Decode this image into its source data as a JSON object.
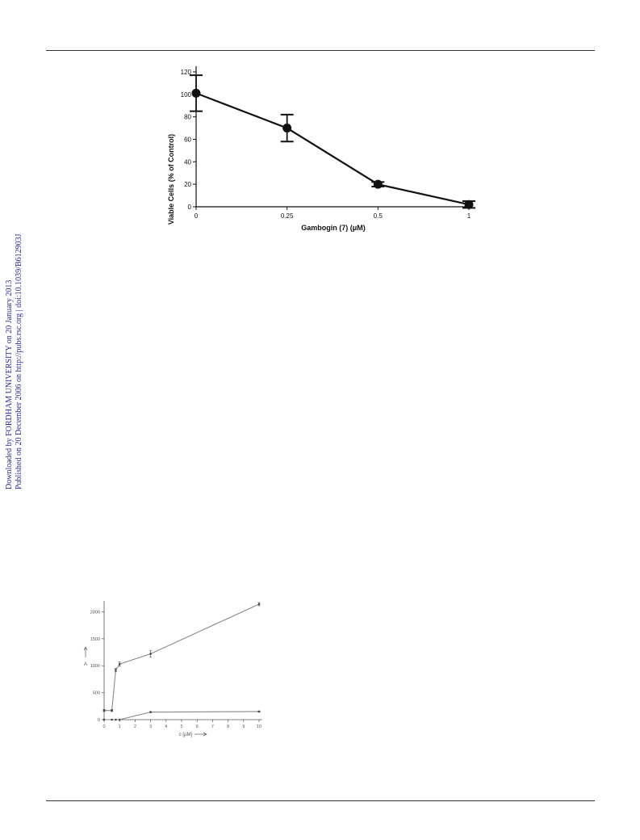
{
  "side_note": {
    "downloaded": "Downloaded by FORDHAM UNIVERSITY on 20 January 2013",
    "published": "Published on 20 December 2006 on http://pubs.rsc.org | doi:10.1039/B612903J"
  },
  "figures": {
    "fig1": {
      "chart_data": {
        "type": "line",
        "title": "",
        "xlabel": "Gambogin (7) (μM)",
        "ylabel": "Viable Cells (% of Control)",
        "categories": [
          "0",
          "0.25",
          "0.5",
          "1"
        ],
        "ylim": [
          0,
          125
        ],
        "yticks": [
          "0",
          "20",
          "40",
          "60",
          "80",
          "100",
          "120"
        ],
        "series": [
          {
            "values": [
              101,
              70,
              20,
              2
            ],
            "errors": [
              16,
              12,
              2,
              3
            ]
          }
        ],
        "grid": false,
        "colors": {
          "line": "#111111"
        }
      }
    },
    "fig2": {
      "chart_data": {
        "type": "line",
        "title": "",
        "xlabel": "c [μM]",
        "ylabel": "A",
        "xlim": [
          0,
          10
        ],
        "ylim": [
          0,
          2200
        ],
        "xticks": [
          "0",
          "1",
          "2",
          "3",
          "4",
          "5",
          "6",
          "7",
          "8",
          "9",
          "10"
        ],
        "yticks": [
          "0",
          "500",
          "1000",
          "1500",
          "2000"
        ],
        "series": [
          {
            "x": [
              0,
              0.5,
              0.75,
              1,
              3,
              10
            ],
            "y": [
              170,
              170,
              920,
              1030,
              1220,
              2140
            ],
            "errors": [
              20,
              20,
              30,
              40,
              60,
              30
            ]
          },
          {
            "x": [
              0,
              0.5,
              0.75,
              1,
              3,
              10
            ],
            "y": [
              0,
              0,
              0,
              0,
              140,
              150
            ],
            "errors": [
              0,
              0,
              0,
              0,
              10,
              10
            ]
          }
        ],
        "grid": false,
        "colors": {
          "line": "#888888",
          "marker": "#444444"
        }
      }
    }
  }
}
